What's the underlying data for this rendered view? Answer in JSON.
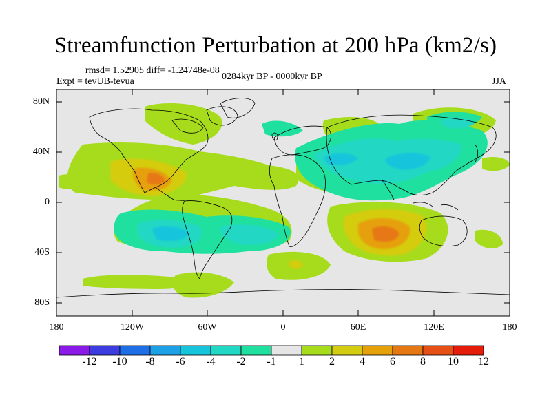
{
  "title": "Streamfunction Perturbation at 200 hPa (km2/s)",
  "stats_line": "rmsd= 1.52905 diff= -1.24748e-08",
  "experiment": "Expt = tevUB-tevua",
  "period": "0284kyr BP - 0000kyr BP",
  "season": "JJA",
  "axes": {
    "y_ticks": [
      "80N",
      "40N",
      "0",
      "40S",
      "80S"
    ],
    "x_ticks": [
      "180",
      "120W",
      "60W",
      "0",
      "60E",
      "120E",
      "180"
    ]
  },
  "colorbar": {
    "labels": [
      "-12",
      "-10",
      "-8",
      "-6",
      "-4",
      "-2",
      "-1",
      "1",
      "2",
      "4",
      "6",
      "8",
      "10",
      "12"
    ],
    "colors": [
      "#8b1ae8",
      "#3c3ce0",
      "#1e6ee8",
      "#1ca0e6",
      "#16c4dc",
      "#20d8c4",
      "#20e0a0",
      "#e6e6e6",
      "#a6dc1c",
      "#d4cc10",
      "#e6a00a",
      "#e67814",
      "#e65014",
      "#e61c0a"
    ]
  },
  "colors": {
    "background": "#e6e6e6",
    "coast": "#000000"
  }
}
